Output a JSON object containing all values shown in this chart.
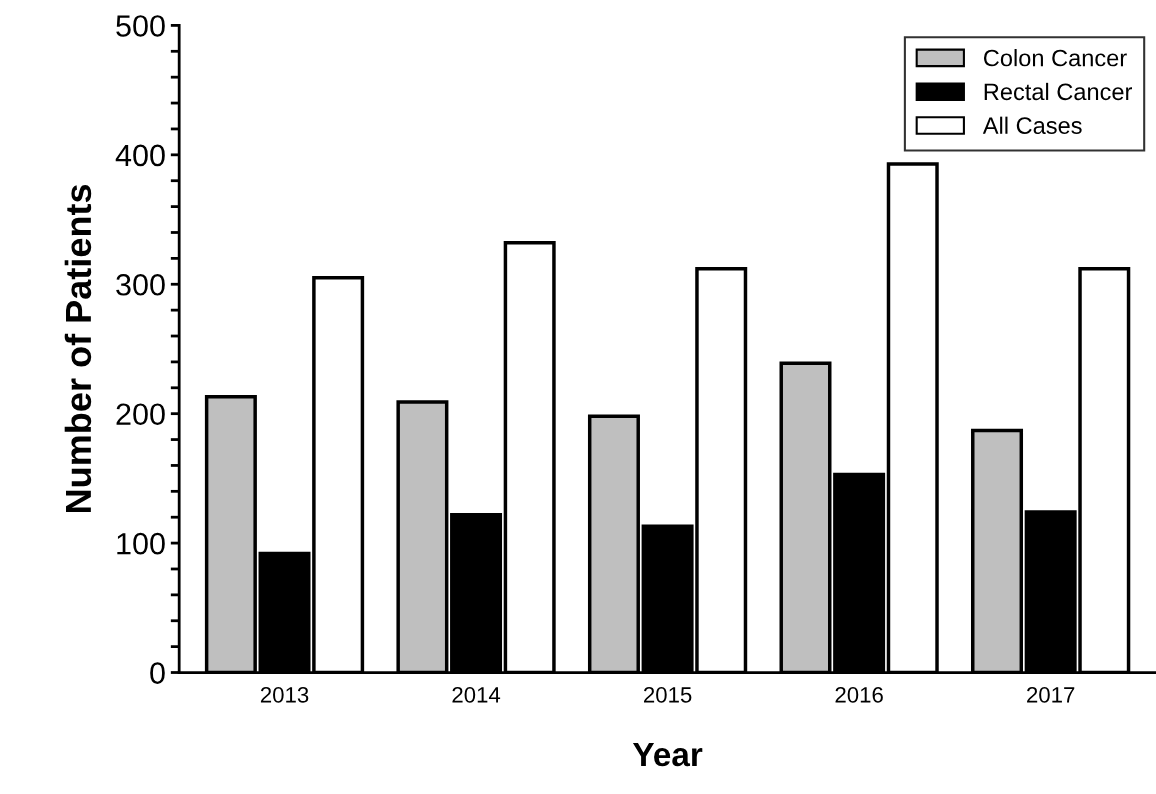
{
  "chart_data": {
    "type": "bar",
    "xlabel": "Year",
    "ylabel": "Number of Patients",
    "categories": [
      "2013",
      "2014",
      "2015",
      "2016",
      "2017"
    ],
    "series": [
      {
        "name": "Colon Cancer",
        "color": "#bfbfbf",
        "values": [
          213,
          209,
          198,
          239,
          187
        ]
      },
      {
        "name": "Rectal Cancer",
        "color": "#000000",
        "values": [
          92,
          122,
          113,
          153,
          124
        ]
      },
      {
        "name": "All Cases",
        "color": "#ffffff",
        "values": [
          305,
          332,
          312,
          393,
          312
        ]
      }
    ],
    "ylim": [
      0,
      500
    ],
    "yticks": [
      0,
      {
        "value": 20,
        "label": null
      },
      {
        "value": 40,
        "label": null
      },
      {
        "value": 60,
        "label": null
      },
      {
        "value": 80,
        "label": null
      },
      100,
      {
        "value": 120,
        "label": null
      },
      {
        "value": 140,
        "label": null
      },
      {
        "value": 160,
        "label": null
      },
      {
        "value": 180,
        "label": null
      },
      200,
      {
        "value": 220,
        "label": null
      },
      {
        "value": 240,
        "label": null
      },
      {
        "value": 260,
        "label": null
      },
      {
        "value": 280,
        "label": null
      },
      300,
      {
        "value": 320,
        "label": null
      },
      {
        "value": 340,
        "label": null
      },
      {
        "value": 360,
        "label": null
      },
      {
        "value": 380,
        "label": null
      },
      400,
      {
        "value": 420,
        "label": null
      },
      {
        "value": 440,
        "label": null
      },
      {
        "value": 460,
        "label": null
      },
      {
        "value": 480,
        "label": null
      },
      500
    ],
    "grid": false,
    "legend": "top right"
  }
}
